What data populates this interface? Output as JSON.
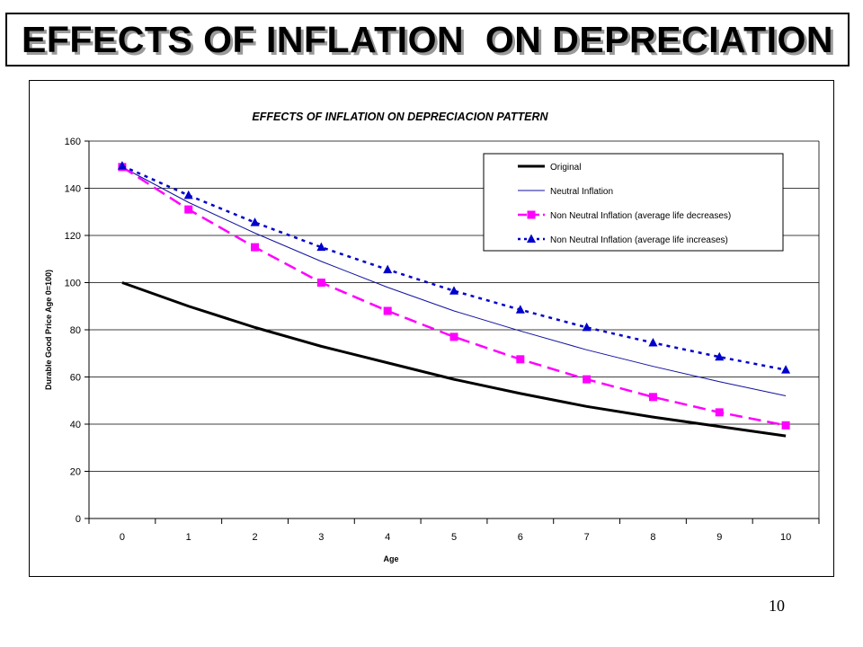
{
  "slide": {
    "title": "EFFECTS OF INFLATION  ON DEPRECIATION",
    "page_number": "10"
  },
  "chart_data": {
    "type": "line",
    "title": "EFFECTS  OF INFLATION  ON DEPRECIACION  PATTERN",
    "xlabel": "Age",
    "ylabel": "Durable Good Price Age 0=100)",
    "x": [
      0,
      1,
      2,
      3,
      4,
      5,
      6,
      7,
      8,
      9,
      10
    ],
    "ylim": [
      0,
      160
    ],
    "yticks": [
      0,
      20,
      40,
      60,
      80,
      100,
      120,
      140,
      160
    ],
    "grid": true,
    "legend_position": "top-right",
    "series": [
      {
        "name": "Original",
        "color": "#000000",
        "style": "solid-thick",
        "marker": "none",
        "values": [
          100,
          90,
          81,
          73,
          66,
          59,
          53,
          47.5,
          43,
          39,
          35
        ]
      },
      {
        "name": "Neutral Inflation",
        "color": "#1010a0",
        "style": "solid-thin",
        "marker": "none",
        "values": [
          149,
          134,
          121,
          109,
          98,
          88,
          79.5,
          71.5,
          64.5,
          58,
          52
        ]
      },
      {
        "name": "Non Neutral Inflation (average life decreases)",
        "color": "#ff00ff",
        "style": "dashed",
        "marker": "square",
        "values": [
          149,
          131,
          115,
          100,
          88,
          77,
          67.5,
          59,
          51.5,
          45,
          39.5
        ]
      },
      {
        "name": "Non Neutral Inflation (average life increases)",
        "color": "#0000cc",
        "style": "dotted",
        "marker": "triangle",
        "values": [
          149.5,
          137,
          125.5,
          115,
          105.5,
          96.5,
          88.5,
          81,
          74.5,
          68.5,
          63
        ]
      }
    ]
  }
}
